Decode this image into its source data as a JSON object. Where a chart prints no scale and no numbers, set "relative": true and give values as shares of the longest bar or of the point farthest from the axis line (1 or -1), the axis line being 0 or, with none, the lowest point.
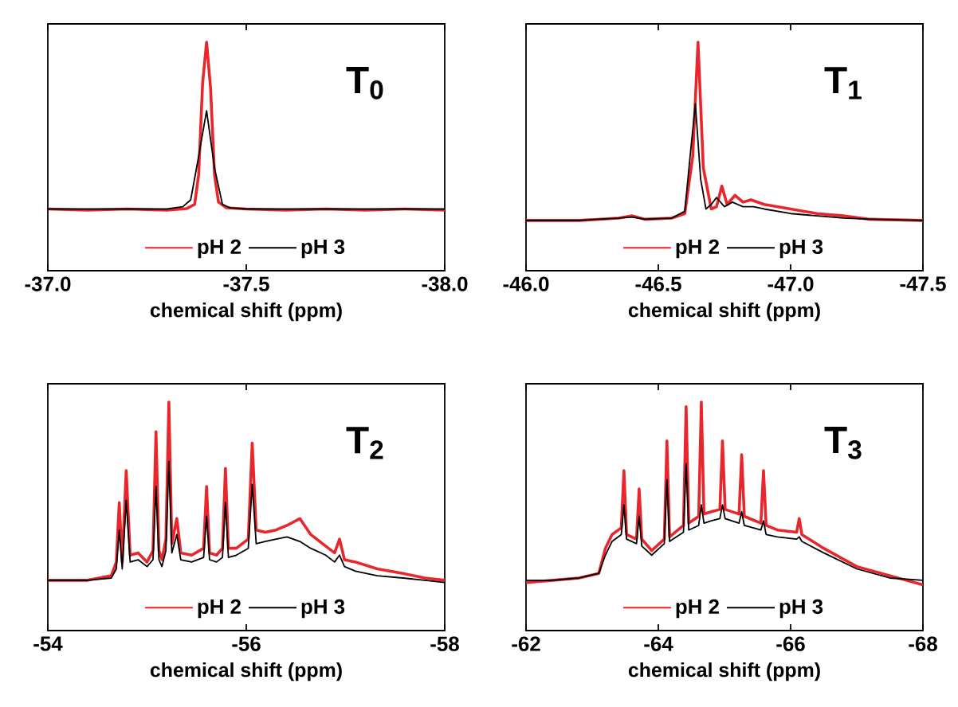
{
  "chart_data": [
    {
      "type": "line",
      "title": "T$_{0}$",
      "xlabel": "chemical shift (ppm)",
      "relative": true,
      "legend": "bottom",
      "xlim": [
        -37.0,
        -38.0
      ],
      "xticks": [
        {
          "value": -37.0,
          "label": "-37.0"
        },
        {
          "value": -37.5,
          "label": "-37.5"
        },
        {
          "value": -38.0,
          "label": "-38.0"
        }
      ],
      "series": [
        {
          "name": "pH 2",
          "color": "#e8262b",
          "x": [
            -37.0,
            -37.1,
            -37.2,
            -37.3,
            -37.35,
            -37.37,
            -37.38,
            -37.39,
            -37.4,
            -37.41,
            -37.42,
            -37.43,
            -37.45,
            -37.5,
            -37.6,
            -37.7,
            -37.8,
            -37.9,
            -38.0
          ],
          "values": [
            0.27,
            0.265,
            0.27,
            0.265,
            0.272,
            0.29,
            0.42,
            0.82,
            1.0,
            0.8,
            0.42,
            0.3,
            0.275,
            0.27,
            0.265,
            0.27,
            0.265,
            0.27,
            0.265
          ]
        },
        {
          "name": "pH 3",
          "color": "#000000",
          "x": [
            -37.0,
            -37.1,
            -37.2,
            -37.3,
            -37.34,
            -37.36,
            -37.38,
            -37.4,
            -37.42,
            -37.44,
            -37.46,
            -37.5,
            -37.6,
            -37.7,
            -37.8,
            -37.9,
            -38.0
          ],
          "values": [
            0.27,
            0.27,
            0.27,
            0.27,
            0.28,
            0.31,
            0.5,
            0.7,
            0.45,
            0.29,
            0.275,
            0.27,
            0.27,
            0.27,
            0.27,
            0.27,
            0.27
          ]
        }
      ]
    },
    {
      "type": "line",
      "title": "T$_{1}$",
      "xlabel": "chemical shift (ppm)",
      "relative": true,
      "legend": "bottom",
      "xlim": [
        -46.0,
        -47.5
      ],
      "xticks": [
        {
          "value": -46.0,
          "label": "-46.0"
        },
        {
          "value": -46.5,
          "label": "-46.5"
        },
        {
          "value": -47.0,
          "label": "-47.0"
        },
        {
          "value": -47.5,
          "label": "-47.5"
        }
      ],
      "series": [
        {
          "name": "pH 2",
          "color": "#e8262b",
          "x": [
            -46.0,
            -46.2,
            -46.35,
            -46.4,
            -46.45,
            -46.55,
            -46.6,
            -46.63,
            -46.65,
            -46.67,
            -46.7,
            -46.72,
            -46.74,
            -46.76,
            -46.79,
            -46.82,
            -46.85,
            -46.9,
            -47.0,
            -47.1,
            -47.2,
            -47.3,
            -47.5
          ],
          "values": [
            0.22,
            0.22,
            0.23,
            0.24,
            0.225,
            0.23,
            0.25,
            0.5,
            1.0,
            0.45,
            0.27,
            0.28,
            0.37,
            0.29,
            0.33,
            0.3,
            0.31,
            0.29,
            0.27,
            0.25,
            0.24,
            0.225,
            0.22
          ]
        },
        {
          "name": "pH 3",
          "color": "#000000",
          "x": [
            -46.0,
            -46.2,
            -46.35,
            -46.4,
            -46.45,
            -46.55,
            -46.6,
            -46.62,
            -46.64,
            -46.66,
            -46.68,
            -46.7,
            -46.72,
            -46.75,
            -46.78,
            -46.82,
            -46.86,
            -46.9,
            -47.0,
            -47.1,
            -47.2,
            -47.3,
            -47.5
          ],
          "values": [
            0.22,
            0.22,
            0.23,
            0.235,
            0.225,
            0.23,
            0.26,
            0.5,
            0.73,
            0.4,
            0.27,
            0.29,
            0.32,
            0.28,
            0.3,
            0.28,
            0.28,
            0.27,
            0.25,
            0.24,
            0.23,
            0.225,
            0.22
          ]
        }
      ]
    },
    {
      "type": "line",
      "title": "T$_{2}$",
      "xlabel": "chemical shift (ppm)",
      "relative": true,
      "legend": "bottom",
      "xlim": [
        -54,
        -58
      ],
      "xticks": [
        -54,
        -56,
        -58
      ],
      "series": [
        {
          "name": "pH 2",
          "color": "#e8262b",
          "x": [
            -54.0,
            -54.4,
            -54.64,
            -54.69,
            -54.72,
            -54.75,
            -54.79,
            -54.83,
            -54.91,
            -55.0,
            -55.06,
            -55.09,
            -55.12,
            -55.15,
            -55.19,
            -55.22,
            -55.25,
            -55.3,
            -55.34,
            -55.45,
            -55.57,
            -55.6,
            -55.63,
            -55.7,
            -55.76,
            -55.79,
            -55.82,
            -55.9,
            -56.02,
            -56.06,
            -56.1,
            -56.19,
            -56.3,
            -56.41,
            -56.54,
            -56.65,
            -56.8,
            -56.89,
            -56.94,
            -56.99,
            -57.1,
            -57.32,
            -57.58,
            -57.8,
            -58.0
          ],
          "values": [
            0.22,
            0.22,
            0.24,
            0.3,
            0.56,
            0.3,
            0.7,
            0.33,
            0.34,
            0.3,
            0.35,
            0.87,
            0.35,
            0.31,
            0.4,
            1.0,
            0.38,
            0.49,
            0.34,
            0.33,
            0.36,
            0.63,
            0.34,
            0.33,
            0.36,
            0.71,
            0.36,
            0.36,
            0.4,
            0.82,
            0.44,
            0.43,
            0.44,
            0.46,
            0.49,
            0.42,
            0.37,
            0.34,
            0.4,
            0.31,
            0.3,
            0.27,
            0.25,
            0.23,
            0.22
          ]
        },
        {
          "name": "pH 3",
          "color": "#000000",
          "x": [
            -54.0,
            -54.4,
            -54.64,
            -54.69,
            -54.72,
            -54.75,
            -54.79,
            -54.83,
            -54.91,
            -55.0,
            -55.06,
            -55.09,
            -55.12,
            -55.15,
            -55.19,
            -55.22,
            -55.25,
            -55.3,
            -55.34,
            -55.45,
            -55.57,
            -55.6,
            -55.63,
            -55.7,
            -55.76,
            -55.79,
            -55.82,
            -55.9,
            -56.02,
            -56.06,
            -56.1,
            -56.19,
            -56.3,
            -56.41,
            -56.54,
            -56.65,
            -56.8,
            -56.89,
            -56.94,
            -56.99,
            -57.1,
            -57.32,
            -57.58,
            -57.8,
            -58.0
          ],
          "values": [
            0.22,
            0.22,
            0.23,
            0.27,
            0.44,
            0.27,
            0.57,
            0.3,
            0.31,
            0.28,
            0.31,
            0.63,
            0.31,
            0.28,
            0.35,
            0.74,
            0.34,
            0.42,
            0.31,
            0.3,
            0.32,
            0.5,
            0.31,
            0.3,
            0.32,
            0.56,
            0.32,
            0.33,
            0.36,
            0.64,
            0.38,
            0.39,
            0.4,
            0.41,
            0.39,
            0.36,
            0.33,
            0.3,
            0.33,
            0.28,
            0.26,
            0.24,
            0.23,
            0.22,
            0.21
          ]
        }
      ]
    },
    {
      "type": "line",
      "title": "T$_{3}$",
      "xlabel": "chemical shift (ppm)",
      "relative": true,
      "legend": "bottom",
      "xlim": [
        -62,
        -68
      ],
      "xticks": [
        -62,
        -64,
        -66,
        -68
      ],
      "series": [
        {
          "name": "pH 2",
          "color": "#e8262b",
          "x": [
            -62.0,
            -62.4,
            -62.8,
            -63.1,
            -63.2,
            -63.3,
            -63.44,
            -63.48,
            -63.52,
            -63.67,
            -63.71,
            -63.75,
            -63.9,
            -64.09,
            -64.13,
            -64.17,
            -64.38,
            -64.42,
            -64.46,
            -64.61,
            -64.65,
            -64.69,
            -64.8,
            -64.93,
            -64.97,
            -65.01,
            -65.22,
            -65.26,
            -65.3,
            -65.55,
            -65.59,
            -65.63,
            -65.8,
            -66.09,
            -66.13,
            -66.17,
            -66.5,
            -67.0,
            -67.5,
            -68.0
          ],
          "values": [
            0.21,
            0.22,
            0.23,
            0.25,
            0.36,
            0.42,
            0.45,
            0.7,
            0.42,
            0.4,
            0.62,
            0.4,
            0.35,
            0.4,
            0.83,
            0.41,
            0.46,
            0.98,
            0.47,
            0.5,
            1.0,
            0.51,
            0.52,
            0.53,
            0.83,
            0.53,
            0.51,
            0.77,
            0.5,
            0.47,
            0.7,
            0.46,
            0.44,
            0.43,
            0.49,
            0.42,
            0.36,
            0.28,
            0.24,
            0.2
          ]
        },
        {
          "name": "pH 3",
          "color": "#000000",
          "x": [
            -62.0,
            -62.4,
            -62.8,
            -63.1,
            -63.2,
            -63.3,
            -63.44,
            -63.48,
            -63.52,
            -63.67,
            -63.71,
            -63.75,
            -63.9,
            -64.09,
            -64.13,
            -64.17,
            -64.38,
            -64.42,
            -64.46,
            -64.61,
            -64.65,
            -64.69,
            -64.8,
            -64.93,
            -64.97,
            -65.01,
            -65.22,
            -65.26,
            -65.3,
            -65.55,
            -65.59,
            -65.63,
            -65.8,
            -66.09,
            -66.13,
            -66.17,
            -66.5,
            -67.0,
            -67.5,
            -68.0
          ],
          "values": [
            0.22,
            0.22,
            0.23,
            0.25,
            0.33,
            0.39,
            0.42,
            0.55,
            0.4,
            0.38,
            0.5,
            0.37,
            0.33,
            0.38,
            0.66,
            0.39,
            0.43,
            0.73,
            0.44,
            0.46,
            0.55,
            0.47,
            0.48,
            0.49,
            0.55,
            0.49,
            0.47,
            0.52,
            0.46,
            0.44,
            0.48,
            0.42,
            0.41,
            0.4,
            0.41,
            0.39,
            0.34,
            0.27,
            0.23,
            0.22
          ]
        }
      ]
    }
  ]
}
